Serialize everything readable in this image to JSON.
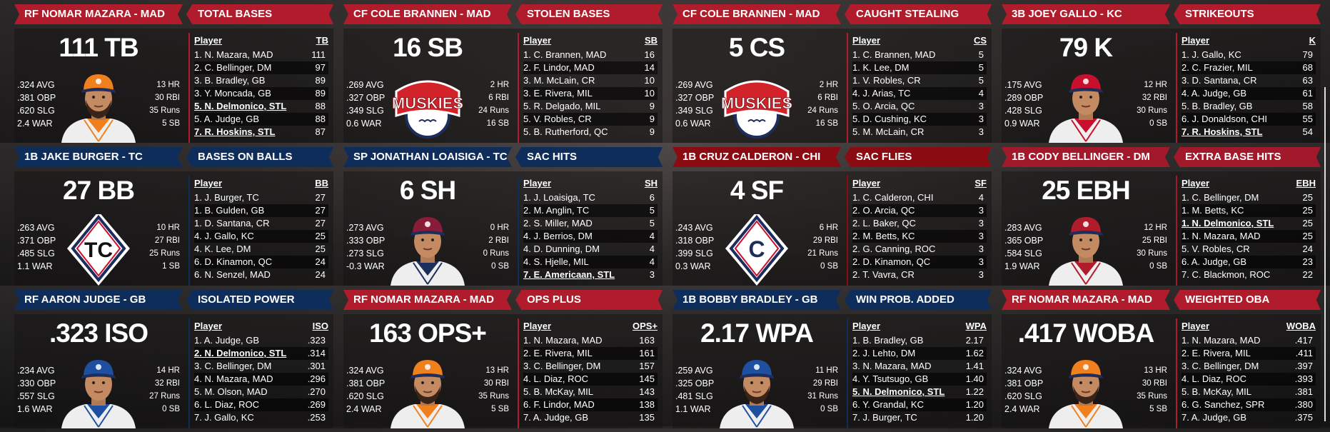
{
  "colors": {
    "red": "#b01c2b",
    "blue": "#0e2d5a",
    "dark_red": "#8a0b12",
    "crimson": "#a2192c"
  },
  "panels": [
    {
      "player": "RF NOMAR MAZARA - MAD",
      "category": "TOTAL BASES",
      "big": "111 TB",
      "color": "red",
      "left": [
        ".324 AVG",
        ".381 OBP",
        ".620 SLG",
        "2.4 WAR"
      ],
      "right": [
        "13 HR",
        "30 RBI",
        "35 Runs",
        "5 SB"
      ],
      "visual": {
        "type": "portrait",
        "cap": "#f07f1e",
        "shirt_trim": "#f07f1e",
        "beard": true,
        "icon": "player-portrait"
      },
      "table": {
        "col_player": "Player",
        "col_stat": "TB",
        "rows": [
          {
            "name": "1. N. Mazara, MAD",
            "value": "111"
          },
          {
            "name": "2. C. Bellinger, DM",
            "value": "97"
          },
          {
            "name": "3. B. Bradley, GB",
            "value": "89"
          },
          {
            "name": "3. Y. Moncada, GB",
            "value": "89"
          },
          {
            "name": "5. N. Delmonico, STL",
            "value": "88",
            "highlight": true
          },
          {
            "name": "5. A. Judge, GB",
            "value": "88"
          },
          {
            "name": "7. R. Hoskins, STL",
            "value": "87",
            "highlight": true
          }
        ]
      }
    },
    {
      "player": "CF COLE BRANNEN - MAD",
      "category": "STOLEN BASES",
      "big": "16 SB",
      "color": "red",
      "left": [
        ".269 AVG",
        ".327 OBP",
        ".349 SLG",
        "0.6 WAR"
      ],
      "right": [
        "2 HR",
        "6 RBI",
        "24 Runs",
        "16 SB"
      ],
      "visual": {
        "type": "muskies",
        "text": "MUSKIES",
        "icon": "muskies-logo"
      },
      "table": {
        "col_player": "Player",
        "col_stat": "SB",
        "rows": [
          {
            "name": "1. C. Brannen, MAD",
            "value": "16"
          },
          {
            "name": "2. F. Lindor, MAD",
            "value": "14"
          },
          {
            "name": "3. M. McLain, CR",
            "value": "10"
          },
          {
            "name": "3. E. Rivera, MIL",
            "value": "10"
          },
          {
            "name": "5. R. Delgado, MIL",
            "value": "9"
          },
          {
            "name": "5. V. Robles, CR",
            "value": "9"
          },
          {
            "name": "5. B. Rutherford, QC",
            "value": "9"
          }
        ]
      }
    },
    {
      "player": "CF COLE BRANNEN - MAD",
      "category": "CAUGHT STEALING",
      "big": "5 CS",
      "color": "red",
      "left": [
        ".269 AVG",
        ".327 OBP",
        ".349 SLG",
        "0.6 WAR"
      ],
      "right": [
        "2 HR",
        "6 RBI",
        "24 Runs",
        "16 SB"
      ],
      "visual": {
        "type": "muskies",
        "text": "MUSKIES",
        "icon": "muskies-logo"
      },
      "table": {
        "col_player": "Player",
        "col_stat": "CS",
        "rows": [
          {
            "name": "1. C. Brannen, MAD",
            "value": "5"
          },
          {
            "name": "1. K. Lee, DM",
            "value": "5"
          },
          {
            "name": "1. V. Robles, CR",
            "value": "5"
          },
          {
            "name": "4. J. Arias, TC",
            "value": "4"
          },
          {
            "name": "5. O. Arcia, QC",
            "value": "3"
          },
          {
            "name": "5. D. Cushing, KC",
            "value": "3"
          },
          {
            "name": "5. M. McLain, CR",
            "value": "3"
          }
        ]
      }
    },
    {
      "player": "3B JOEY GALLO - KC",
      "category": "STRIKEOUTS",
      "big": "79 K",
      "color": "red",
      "left": [
        ".175 AVG",
        ".289 OBP",
        ".428 SLG",
        "0.9 WAR"
      ],
      "right": [
        "12 HR",
        "32 RBI",
        "30 Runs",
        "0 SB"
      ],
      "visual": {
        "type": "portrait",
        "cap": "#c8102e",
        "shirt_trim": "#c8102e",
        "beard": false,
        "icon": "player-portrait"
      },
      "table": {
        "col_player": "Player",
        "col_stat": "K",
        "rows": [
          {
            "name": "1. J. Gallo, KC",
            "value": "79"
          },
          {
            "name": "2. C. Frazier, MIL",
            "value": "68"
          },
          {
            "name": "3. D. Santana, CR",
            "value": "63"
          },
          {
            "name": "4. A. Judge, GB",
            "value": "61"
          },
          {
            "name": "5. B. Bradley, GB",
            "value": "58"
          },
          {
            "name": "6. J. Donaldson, CHI",
            "value": "55"
          },
          {
            "name": "7. R. Hoskins, STL",
            "value": "54",
            "highlight": true
          }
        ]
      }
    },
    {
      "player": "1B JAKE BURGER - TC",
      "category": "BASES ON BALLS",
      "big": "27 BB",
      "color": "blue",
      "left": [
        ".263 AVG",
        ".371 OBP",
        ".485 SLG",
        "1.1 WAR"
      ],
      "right": [
        "10 HR",
        "27 RBI",
        "25 Runs",
        "1 SB"
      ],
      "visual": {
        "type": "diamond",
        "text": "TC",
        "letter_color": "#111",
        "icon": "tc-logo"
      },
      "table": {
        "col_player": "Player",
        "col_stat": "BB",
        "rows": [
          {
            "name": "1. J. Burger, TC",
            "value": "27"
          },
          {
            "name": "1. B. Gulden, GB",
            "value": "27"
          },
          {
            "name": "1. D. Santana, CR",
            "value": "27"
          },
          {
            "name": "4. J. Gallo, KC",
            "value": "25"
          },
          {
            "name": "4. K. Lee, DM",
            "value": "25"
          },
          {
            "name": "6. D. Kinamon, QC",
            "value": "24"
          },
          {
            "name": "6. N. Senzel, MAD",
            "value": "24"
          }
        ]
      }
    },
    {
      "player": "SP JONATHAN LOAISIGA - TC",
      "category": "SAC HITS",
      "big": "6 SH",
      "color": "blue",
      "left": [
        ".273 AVG",
        ".333 OBP",
        ".273 SLG",
        "-0.3 WAR"
      ],
      "right": [
        "0 HR",
        "2 RBI",
        "0 Runs",
        "0 SB"
      ],
      "visual": {
        "type": "portrait",
        "cap": "#8a1c3a",
        "shirt_trim": "#1d2e5c",
        "beard": false,
        "icon": "player-portrait"
      },
      "table": {
        "col_player": "Player",
        "col_stat": "SH",
        "rows": [
          {
            "name": "1. J. Loaisiga, TC",
            "value": "6"
          },
          {
            "name": "2. M. Anglin, TC",
            "value": "5"
          },
          {
            "name": "2. S. Miller, MAD",
            "value": "5"
          },
          {
            "name": "4. J. Berrios, DM",
            "value": "4"
          },
          {
            "name": "4. D. Dunning, DM",
            "value": "4"
          },
          {
            "name": "4. S. Hjelle, MIL",
            "value": "4"
          },
          {
            "name": "7. E. Americaan, STL",
            "value": "3",
            "highlight": true
          }
        ]
      }
    },
    {
      "player": "1B CRUZ CALDERON - CHI",
      "category": "SAC FLIES",
      "big": "4 SF",
      "color": "dark_red",
      "left": [
        ".243 AVG",
        ".318 OBP",
        ".399 SLG",
        "0.3 WAR"
      ],
      "right": [
        "6 HR",
        "29 RBI",
        "21 Runs",
        "0 SB"
      ],
      "visual": {
        "type": "diamond",
        "text": "C",
        "letter_color": "#1d2e5c",
        "icon": "chi-logo"
      },
      "table": {
        "col_player": "Player",
        "col_stat": "SF",
        "rows": [
          {
            "name": "1. C. Calderon, CHI",
            "value": "4"
          },
          {
            "name": "2. O. Arcia, QC",
            "value": "3"
          },
          {
            "name": "2. L. Baker, QC",
            "value": "3"
          },
          {
            "name": "2. M. Betts, KC",
            "value": "3"
          },
          {
            "name": "2. G. Canning, ROC",
            "value": "3"
          },
          {
            "name": "2. D. Kinamon, QC",
            "value": "3"
          },
          {
            "name": "2. T. Vavra, CR",
            "value": "3"
          }
        ]
      }
    },
    {
      "player": "1B CODY BELLINGER - DM",
      "category": "EXTRA BASE HITS",
      "big": "25 EBH",
      "color": "crimson",
      "left": [
        ".283 AVG",
        ".365 OBP",
        ".584 SLG",
        "1.9 WAR"
      ],
      "right": [
        "12 HR",
        "25 RBI",
        "30 Runs",
        "0 SB"
      ],
      "visual": {
        "type": "portrait",
        "cap": "#b01c2b",
        "shirt_trim": "#b01c2b",
        "beard": false,
        "icon": "player-portrait"
      },
      "table": {
        "col_player": "Player",
        "col_stat": "EBH",
        "rows": [
          {
            "name": "1. C. Bellinger, DM",
            "value": "25"
          },
          {
            "name": "1. M. Betts, KC",
            "value": "25"
          },
          {
            "name": "1. N. Delmonico, STL",
            "value": "25",
            "highlight": true
          },
          {
            "name": "1. N. Mazara, MAD",
            "value": "25"
          },
          {
            "name": "5. V. Robles, CR",
            "value": "24"
          },
          {
            "name": "6. A. Judge, GB",
            "value": "23"
          },
          {
            "name": "7. C. Blackmon, ROC",
            "value": "22"
          }
        ]
      }
    },
    {
      "player": "RF AARON JUDGE - GB",
      "category": "ISOLATED POWER",
      "big": ".323 ISO",
      "color": "blue",
      "left": [
        ".234 AVG",
        ".330 OBP",
        ".557 SLG",
        "1.6 WAR"
      ],
      "right": [
        "14 HR",
        "32 RBI",
        "27 Runs",
        "0 SB"
      ],
      "visual": {
        "type": "portrait",
        "cap": "#1f4fa0",
        "shirt_trim": "#1f4fa0",
        "beard": false,
        "icon": "player-portrait"
      },
      "table": {
        "col_player": "Player",
        "col_stat": "ISO",
        "rows": [
          {
            "name": "1. A. Judge, GB",
            "value": ".323"
          },
          {
            "name": "2. N. Delmonico, STL",
            "value": ".314",
            "highlight": true
          },
          {
            "name": "3. C. Bellinger, DM",
            "value": ".301"
          },
          {
            "name": "4. N. Mazara, MAD",
            "value": ".296"
          },
          {
            "name": "5. M. Olson, MAD",
            "value": ".270"
          },
          {
            "name": "6. L. Diaz, ROC",
            "value": ".269"
          },
          {
            "name": "7. J. Gallo, KC",
            "value": ".253"
          }
        ]
      }
    },
    {
      "player": "RF NOMAR MAZARA - MAD",
      "category": "OPS PLUS",
      "big": "163 OPS+",
      "color": "red",
      "left": [
        ".324 AVG",
        ".381 OBP",
        ".620 SLG",
        "2.4 WAR"
      ],
      "right": [
        "13 HR",
        "30 RBI",
        "35 Runs",
        "5 SB"
      ],
      "visual": {
        "type": "portrait",
        "cap": "#f07f1e",
        "shirt_trim": "#f07f1e",
        "beard": true,
        "icon": "player-portrait"
      },
      "table": {
        "col_player": "Player",
        "col_stat": "OPS+",
        "rows": [
          {
            "name": "1. N. Mazara, MAD",
            "value": "163"
          },
          {
            "name": "2. E. Rivera, MIL",
            "value": "161"
          },
          {
            "name": "3. C. Bellinger, DM",
            "value": "157"
          },
          {
            "name": "4. L. Diaz, ROC",
            "value": "145"
          },
          {
            "name": "5. B. McKay, MIL",
            "value": "143"
          },
          {
            "name": "6. F. Lindor, MAD",
            "value": "138"
          },
          {
            "name": "7. A. Judge, GB",
            "value": "135"
          }
        ]
      }
    },
    {
      "player": "1B BOBBY BRADLEY - GB",
      "category": "WIN PROB. ADDED",
      "big": "2.17 WPA",
      "color": "blue",
      "left": [
        ".259 AVG",
        ".325 OBP",
        ".481 SLG",
        "1.1 WAR"
      ],
      "right": [
        "11 HR",
        "29 RBI",
        "31 Runs",
        "0 SB"
      ],
      "visual": {
        "type": "portrait",
        "cap": "#1f4fa0",
        "shirt_trim": "#1f4fa0",
        "beard": true,
        "icon": "player-portrait"
      },
      "table": {
        "col_player": "Player",
        "col_stat": "WPA",
        "rows": [
          {
            "name": "1. B. Bradley, GB",
            "value": "2.17"
          },
          {
            "name": "2. J. Lehto, DM",
            "value": "1.62"
          },
          {
            "name": "3. N. Mazara, MAD",
            "value": "1.41"
          },
          {
            "name": "4. Y. Tsutsugo, GB",
            "value": "1.40"
          },
          {
            "name": "5. N. Delmonico, STL",
            "value": "1.22",
            "highlight": true
          },
          {
            "name": "6. Y. Grandal, KC",
            "value": "1.20"
          },
          {
            "name": "7. J. Burger, TC",
            "value": "1.20"
          }
        ]
      }
    },
    {
      "player": "RF NOMAR MAZARA - MAD",
      "category": "WEIGHTED OBA",
      "big": ".417 WOBA",
      "color": "red",
      "left": [
        ".324 AVG",
        ".381 OBP",
        ".620 SLG",
        "2.4 WAR"
      ],
      "right": [
        "13 HR",
        "30 RBI",
        "35 Runs",
        "5 SB"
      ],
      "visual": {
        "type": "portrait",
        "cap": "#f07f1e",
        "shirt_trim": "#f07f1e",
        "beard": true,
        "icon": "player-portrait"
      },
      "table": {
        "col_player": "Player",
        "col_stat": "WOBA",
        "rows": [
          {
            "name": "1. N. Mazara, MAD",
            "value": ".417"
          },
          {
            "name": "2. E. Rivera, MIL",
            "value": ".411"
          },
          {
            "name": "3. C. Bellinger, DM",
            "value": ".397"
          },
          {
            "name": "4. L. Diaz, ROC",
            "value": ".393"
          },
          {
            "name": "5. B. McKay, MIL",
            "value": ".381"
          },
          {
            "name": "6. G. Sanchez, SPR",
            "value": ".380"
          },
          {
            "name": "7. A. Judge, GB",
            "value": ".375"
          }
        ]
      }
    }
  ]
}
